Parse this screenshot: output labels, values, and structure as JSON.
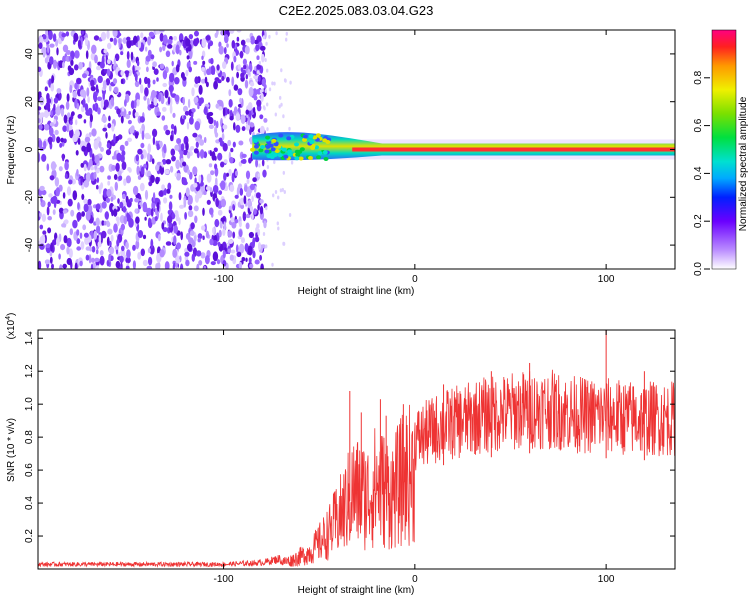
{
  "title": "C2E2.2025.083.03.04.G23",
  "chart_data": [
    {
      "type": "heatmap",
      "xlabel": "Height of straight line (km)",
      "ylabel": "Frequency (Hz)",
      "xlim": [
        -197,
        136
      ],
      "ylim": [
        -50,
        50
      ],
      "xticks": [
        -100,
        0,
        100
      ],
      "yticks": [
        -40,
        -20,
        0,
        20,
        40
      ],
      "colorbar": {
        "label": "Normalized spectral amplitude",
        "range": [
          0,
          1
        ],
        "ticks": [
          0.0,
          0.2,
          0.4,
          0.6,
          0.8
        ]
      },
      "noise_region_x": [
        -197,
        -80
      ],
      "signal_line_frequency_hz": 0,
      "signal_start_km": -85
    },
    {
      "type": "line",
      "xlabel": "Height of straight line (km)",
      "ylabel": "SNR (10 * v/v)",
      "scale_label": "(x10^4)",
      "xlim": [
        -197,
        136
      ],
      "ylim": [
        0,
        1.45
      ],
      "xticks": [
        -100,
        0,
        100
      ],
      "yticks": [
        0.2,
        0.4,
        0.6,
        0.8,
        1.0,
        1.2,
        1.4
      ],
      "series": [
        {
          "color": "#ee3333",
          "envelope": [
            [
              -197,
              0.03
            ],
            [
              -100,
              0.03
            ],
            [
              -80,
              0.04
            ],
            [
              -65,
              0.08
            ],
            [
              -55,
              0.16
            ],
            [
              -45,
              0.35
            ],
            [
              -38,
              0.55
            ],
            [
              -32,
              0.75
            ],
            [
              -25,
              0.7
            ],
            [
              -20,
              0.82
            ],
            [
              -12,
              0.72
            ],
            [
              -5,
              0.9
            ],
            [
              5,
              0.98
            ],
            [
              15,
              1.05
            ],
            [
              25,
              1.08
            ],
            [
              35,
              1.12
            ],
            [
              50,
              1.15
            ],
            [
              60,
              1.17
            ],
            [
              70,
              1.17
            ],
            [
              80,
              1.14
            ],
            [
              90,
              1.12
            ],
            [
              100,
              1.12
            ],
            [
              115,
              1.1
            ],
            [
              136,
              1.1
            ]
          ],
          "spikes": [
            [
              -34,
              1.08
            ],
            [
              -28,
              0.95
            ],
            [
              -18,
              1.03
            ],
            [
              -15,
              0.93
            ],
            [
              -6,
              1.0
            ],
            [
              15,
              1.12
            ],
            [
              40,
              1.2
            ],
            [
              60,
              1.25
            ],
            [
              100,
              1.45
            ],
            [
              120,
              1.2
            ]
          ]
        }
      ]
    }
  ]
}
